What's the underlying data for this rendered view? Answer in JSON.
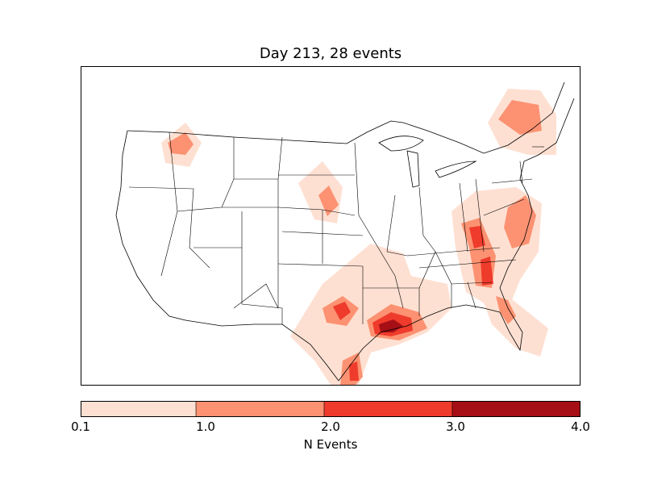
{
  "title": "Day 213, 28 events",
  "legend": {
    "label": "N Events",
    "ticks": [
      "0.1",
      "1.0",
      "2.0",
      "3.0",
      "4.0"
    ],
    "bins": [
      {
        "from": 0.1,
        "to": 1.0,
        "color": "#fee0d2"
      },
      {
        "from": 1.0,
        "to": 2.0,
        "color": "#fc9272"
      },
      {
        "from": 2.0,
        "to": 3.0,
        "color": "#ef3b2c"
      },
      {
        "from": 3.0,
        "to": 4.0,
        "color": "#a50f15"
      }
    ]
  },
  "map": {
    "region": "Contiguous United States",
    "borders": [
      "coastlines",
      "country borders",
      "state borders"
    ],
    "hotspots": [
      {
        "area": "Northern Idaho / Montana",
        "max_level": "1.0-2.0"
      },
      {
        "area": "Southeast South Dakota / Nebraska",
        "max_level": "1.0-2.0"
      },
      {
        "area": "New England / Upstate New York",
        "max_level": "1.0-2.0"
      },
      {
        "area": "Virginia / North Carolina coast",
        "max_level": "1.0-2.0"
      },
      {
        "area": "Carolinas / Georgia",
        "max_level": "2.0-3.0"
      },
      {
        "area": "North Texas",
        "max_level": "2.0-3.0"
      },
      {
        "area": "Southeast Texas / Louisiana",
        "max_level": "3.0-4.0"
      },
      {
        "area": "South Texas",
        "max_level": "2.0-3.0"
      },
      {
        "area": "Florida",
        "max_level": "1.0-2.0"
      }
    ]
  }
}
